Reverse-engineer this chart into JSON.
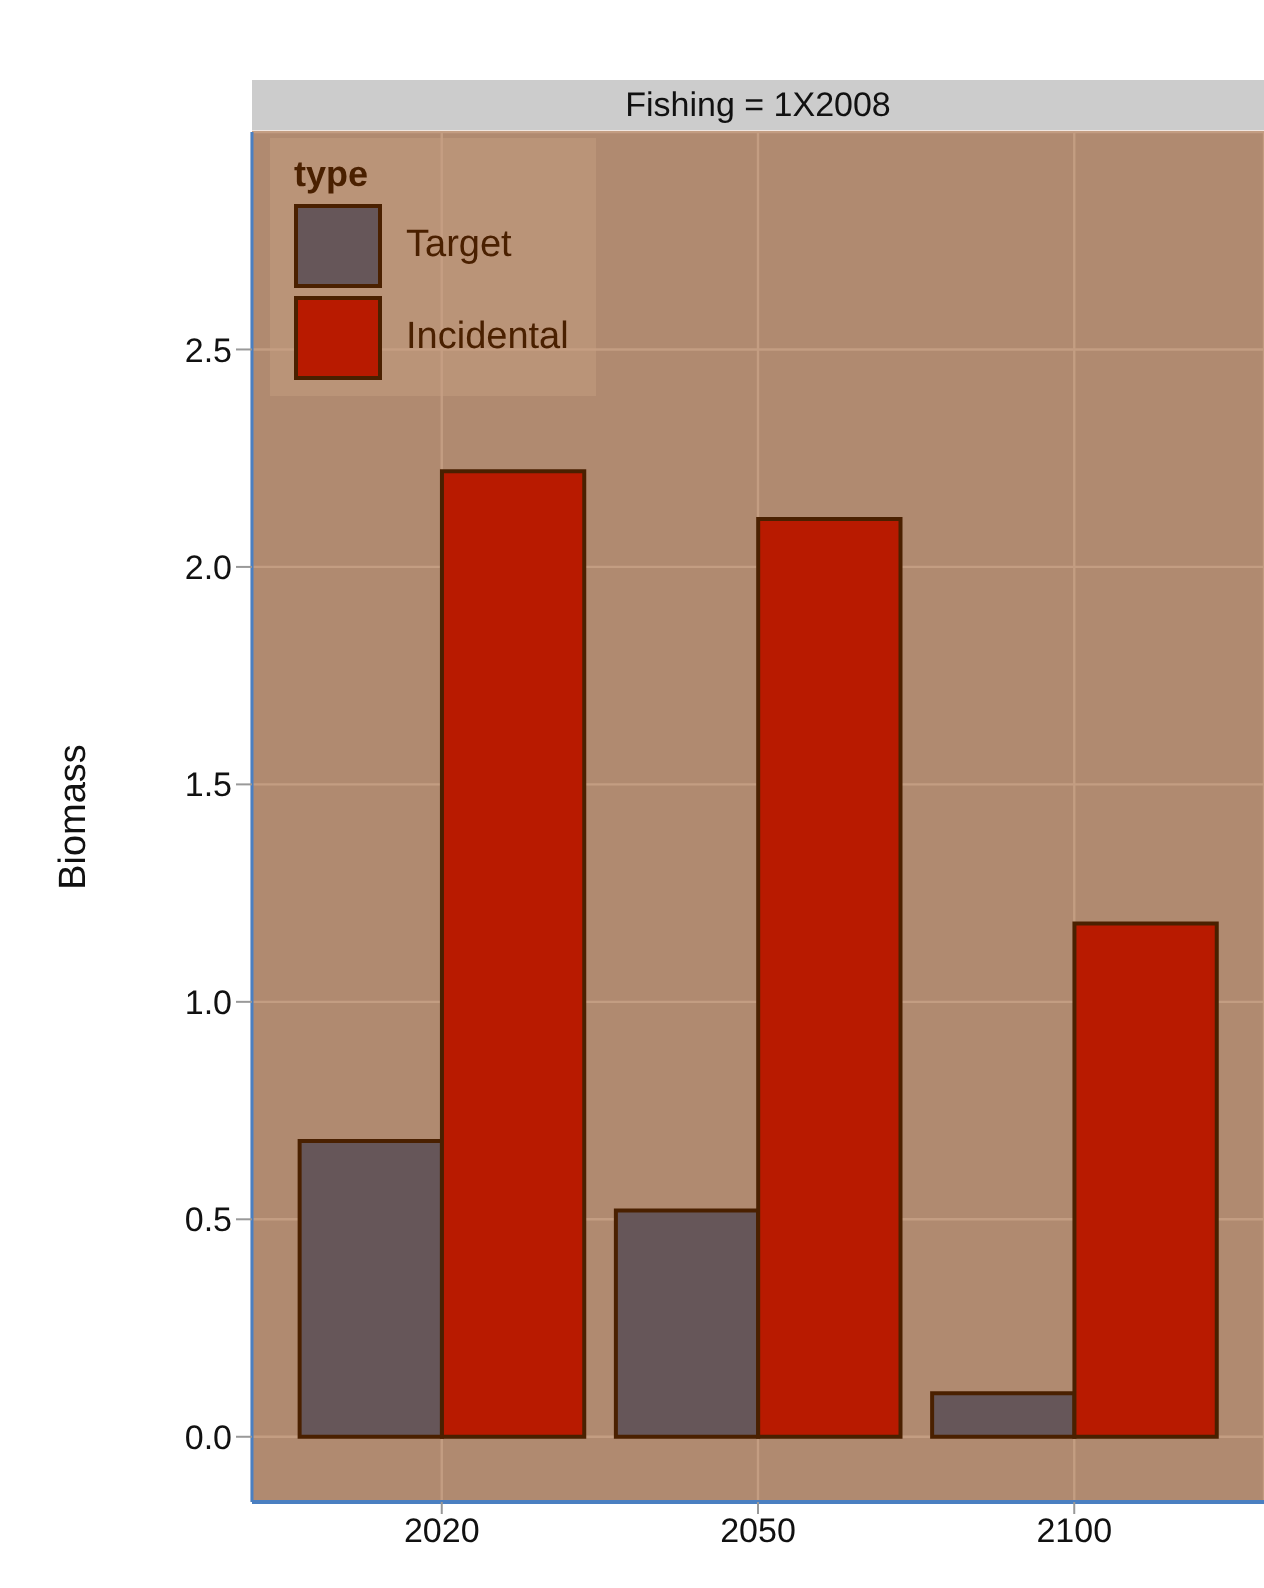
{
  "chart_data": {
    "type": "bar",
    "title": "Fishing = 1X2008",
    "ylabel": "Biomass",
    "legend_title": "type",
    "categories": [
      "2020",
      "2050",
      "2100"
    ],
    "series": [
      {
        "name": "Target",
        "color": "#665659",
        "values": [
          0.68,
          0.52,
          0.1
        ]
      },
      {
        "name": "Incidental",
        "color": "#b81a00",
        "values": [
          2.22,
          2.11,
          1.18
        ]
      }
    ],
    "ylim": [
      -0.15,
      3.0
    ],
    "yticks": [
      {
        "value": 0,
        "label": "0.0"
      },
      0.5,
      {
        "value": 1,
        "label": "1.0"
      },
      1.5,
      {
        "value": 2,
        "label": "2.0"
      },
      2.5
    ],
    "grid": true,
    "legend": "top left"
  }
}
